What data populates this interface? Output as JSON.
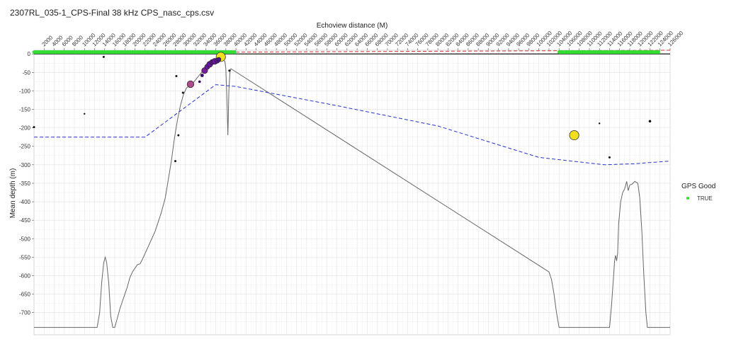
{
  "chart_data": {
    "type": "scatter",
    "title": "2307RL_035-1_CPS-Final 38 kHz CPS_nasc_cps.csv",
    "xlabel": "Echoview distance (M)",
    "ylabel": "Mean depth (m)",
    "xlim": [
      0,
      126000
    ],
    "ylim": [
      -760,
      10
    ],
    "x_ticks": [
      2000,
      4000,
      6000,
      8000,
      10000,
      12000,
      14000,
      16000,
      18000,
      20000,
      22000,
      24000,
      26000,
      28000,
      30000,
      32000,
      34000,
      36000,
      38000,
      40000,
      42000,
      44000,
      46000,
      48000,
      50000,
      52000,
      54000,
      56000,
      58000,
      60000,
      62000,
      64000,
      66000,
      68000,
      70000,
      72000,
      74000,
      76000,
      78000,
      80000,
      82000,
      84000,
      86000,
      88000,
      90000,
      92000,
      94000,
      96000,
      98000,
      100000,
      102000,
      104000,
      106000,
      108000,
      110000,
      112000,
      114000,
      116000,
      118000,
      120000,
      122000,
      124000,
      126000
    ],
    "y_ticks": [
      0,
      -50,
      -100,
      -150,
      -200,
      -250,
      -300,
      -350,
      -400,
      -450,
      -500,
      -550,
      -600,
      -650,
      -700
    ],
    "x_axis_position": "top",
    "grid": true,
    "legend": {
      "title": "GPS Good",
      "position": "right",
      "entries": [
        {
          "label": "TRUE",
          "color": "#33dd33"
        }
      ]
    },
    "series": [
      {
        "kind": "bottom_line",
        "color": "#666666",
        "points": [
          [
            0,
            -740
          ],
          [
            12500,
            -740
          ],
          [
            13000,
            -700
          ],
          [
            13400,
            -620
          ],
          [
            13800,
            -565
          ],
          [
            14100,
            -550
          ],
          [
            14400,
            -565
          ],
          [
            14800,
            -620
          ],
          [
            15200,
            -710
          ],
          [
            15600,
            -740
          ],
          [
            16000,
            -740
          ],
          [
            16400,
            -720
          ],
          [
            17000,
            -690
          ],
          [
            17500,
            -670
          ],
          [
            18000,
            -650
          ],
          [
            18500,
            -630
          ],
          [
            19000,
            -605
          ],
          [
            19500,
            -590
          ],
          [
            20000,
            -580
          ],
          [
            20500,
            -570
          ],
          [
            21000,
            -568
          ],
          [
            21500,
            -555
          ],
          [
            22500,
            -525
          ],
          [
            24000,
            -480
          ],
          [
            25200,
            -430
          ],
          [
            26000,
            -390
          ],
          [
            26600,
            -340
          ],
          [
            27200,
            -290
          ],
          [
            27800,
            -230
          ],
          [
            28400,
            -180
          ],
          [
            29000,
            -140
          ],
          [
            29600,
            -110
          ],
          [
            30200,
            -92
          ],
          [
            30800,
            -86
          ],
          [
            31400,
            -80
          ],
          [
            32000,
            -70
          ],
          [
            32600,
            -60
          ],
          [
            33200,
            -50
          ],
          [
            33800,
            -40
          ],
          [
            34400,
            -30
          ],
          [
            35000,
            -22
          ],
          [
            35600,
            -17
          ],
          [
            36200,
            -14
          ],
          [
            36800,
            -14
          ],
          [
            37400,
            -15
          ],
          [
            37800,
            -20
          ],
          [
            38000,
            -40
          ],
          [
            38200,
            -120
          ],
          [
            38400,
            -220
          ],
          [
            38600,
            -100
          ],
          [
            38800,
            -50
          ],
          [
            39000,
            -40
          ],
          [
            102000,
            -590
          ],
          [
            102500,
            -610
          ],
          [
            103000,
            -650
          ],
          [
            103500,
            -700
          ],
          [
            104000,
            -740
          ],
          [
            114000,
            -740
          ],
          [
            114400,
            -680
          ],
          [
            114800,
            -600
          ],
          [
            115000,
            -560
          ],
          [
            115200,
            -545
          ],
          [
            115400,
            -560
          ],
          [
            115600,
            -540
          ],
          [
            115800,
            -460
          ],
          [
            116200,
            -400
          ],
          [
            116600,
            -375
          ],
          [
            117000,
            -365
          ],
          [
            117400,
            -345
          ],
          [
            117700,
            -370
          ],
          [
            118000,
            -355
          ],
          [
            118500,
            -352
          ],
          [
            119000,
            -345
          ],
          [
            119600,
            -350
          ],
          [
            120000,
            -390
          ],
          [
            120400,
            -480
          ],
          [
            120800,
            -600
          ],
          [
            121200,
            -700
          ],
          [
            121500,
            -740
          ],
          [
            126000,
            -740
          ]
        ]
      },
      {
        "kind": "dashed_line",
        "color": "#2233cc",
        "points": [
          [
            0,
            -225
          ],
          [
            22000,
            -225
          ],
          [
            36000,
            -83
          ],
          [
            40000,
            -88
          ],
          [
            60000,
            -140
          ],
          [
            80000,
            -195
          ],
          [
            100000,
            -280
          ],
          [
            113000,
            -300
          ],
          [
            119000,
            -297
          ],
          [
            126000,
            -290
          ]
        ]
      },
      {
        "kind": "dashed_line",
        "color": "#cc3333",
        "points": [
          [
            40000,
            5
          ],
          [
            126000,
            10
          ]
        ]
      },
      {
        "kind": "solid_line",
        "color": "#000000",
        "points": [
          [
            0,
            0
          ],
          [
            126000,
            0
          ]
        ]
      },
      {
        "kind": "gps_points",
        "color": "#33dd33",
        "segments": [
          [
            0,
            40000
          ],
          [
            104000,
            124000
          ]
        ],
        "y": 5
      },
      {
        "kind": "nasc_points",
        "points": [
          {
            "x": 37000,
            "y": -8,
            "size": 10,
            "color": "#f2e020"
          },
          {
            "x": 107000,
            "y": -220,
            "size": 10,
            "color": "#f2e020"
          },
          {
            "x": 31000,
            "y": -82,
            "size": 7,
            "color": "#b04a8e"
          },
          {
            "x": 33800,
            "y": -45,
            "size": 6,
            "color": "#7a1fa0"
          },
          {
            "x": 34300,
            "y": -35,
            "size": 5,
            "color": "#6a17a0"
          },
          {
            "x": 34800,
            "y": -28,
            "size": 6,
            "color": "#6017a0"
          },
          {
            "x": 35300,
            "y": -22,
            "size": 5,
            "color": "#5a1595"
          },
          {
            "x": 35800,
            "y": -20,
            "size": 6,
            "color": "#6a17a0"
          },
          {
            "x": 36300,
            "y": -18,
            "size": 5,
            "color": "#5a1595"
          },
          {
            "x": 33300,
            "y": -58,
            "size": 3,
            "color": "#3a0b6e"
          },
          {
            "x": 32800,
            "y": -75,
            "size": 2,
            "color": "#2a0a50"
          },
          {
            "x": 36600,
            "y": -15,
            "size": 4,
            "color": "#4a148a"
          },
          {
            "x": 13800,
            "y": -8,
            "size": 1.5,
            "color": "#111111"
          },
          {
            "x": 28200,
            "y": -60,
            "size": 1.5,
            "color": "#111111"
          },
          {
            "x": 29500,
            "y": -105,
            "size": 1.5,
            "color": "#111111"
          },
          {
            "x": 10000,
            "y": -162,
            "size": 1,
            "color": "#111111"
          },
          {
            "x": 0,
            "y": -198,
            "size": 1.5,
            "color": "#111111"
          },
          {
            "x": 28000,
            "y": -290,
            "size": 1.5,
            "color": "#111111"
          },
          {
            "x": 28600,
            "y": -220,
            "size": 1.5,
            "color": "#111111"
          },
          {
            "x": 38700,
            "y": -45,
            "size": 1.5,
            "color": "#111111"
          },
          {
            "x": 112000,
            "y": -188,
            "size": 1,
            "color": "#111111"
          },
          {
            "x": 114000,
            "y": -280,
            "size": 1.5,
            "color": "#111111"
          },
          {
            "x": 122000,
            "y": -182,
            "size": 2,
            "color": "#111111"
          }
        ]
      }
    ]
  }
}
